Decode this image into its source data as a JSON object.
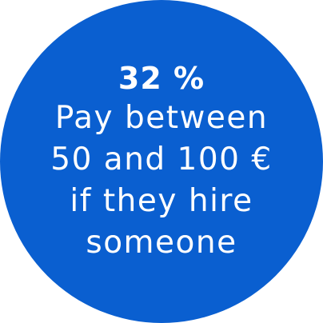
{
  "colors": {
    "circle": "#0a5fd0",
    "text": "#ffffff",
    "background": "#ffffff"
  },
  "stat": {
    "value": "32 %"
  },
  "description": {
    "lines": [
      "Pay between",
      "50 and 100 €",
      "if they hire",
      "someone"
    ]
  }
}
